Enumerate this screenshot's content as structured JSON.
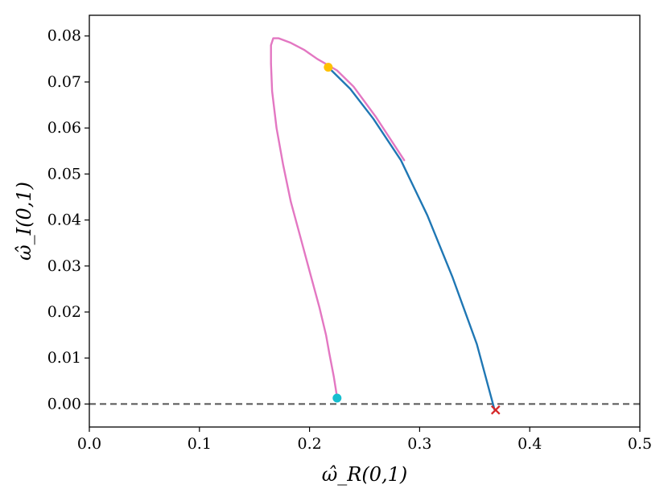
{
  "chart_data": {
    "type": "line",
    "title": "",
    "xlabel": "ω̂_R(0,1)",
    "ylabel": "ω̂_I(0,1)",
    "xlim": [
      0.0,
      0.5
    ],
    "ylim": [
      -0.005,
      0.0845
    ],
    "x_ticks": [
      "0.0",
      "0.1",
      "0.2",
      "0.3",
      "0.4",
      "0.5"
    ],
    "x_tick_values": [
      0.0,
      0.1,
      0.2,
      0.3,
      0.4,
      0.5
    ],
    "y_ticks": [
      "0.00",
      "0.01",
      "0.02",
      "0.03",
      "0.04",
      "0.05",
      "0.06",
      "0.07",
      "0.08"
    ],
    "y_tick_values": [
      0.0,
      0.01,
      0.02,
      0.03,
      0.04,
      0.05,
      0.06,
      0.07,
      0.08
    ],
    "grid": false,
    "reference_line": {
      "y": 0.0,
      "style": "dashed",
      "color": "#555555"
    },
    "series": [
      {
        "color": "#e377c2",
        "points": [
          [
            0.225,
            0.0015
          ],
          [
            0.222,
            0.006
          ],
          [
            0.218,
            0.011
          ],
          [
            0.215,
            0.015
          ],
          [
            0.209,
            0.021
          ],
          [
            0.201,
            0.028
          ],
          [
            0.192,
            0.036
          ],
          [
            0.183,
            0.044
          ],
          [
            0.176,
            0.052
          ],
          [
            0.17,
            0.06
          ],
          [
            0.166,
            0.068
          ],
          [
            0.165,
            0.074
          ],
          [
            0.165,
            0.078
          ],
          [
            0.167,
            0.0795
          ],
          [
            0.172,
            0.0795
          ],
          [
            0.183,
            0.0785
          ],
          [
            0.195,
            0.077
          ],
          [
            0.207,
            0.075
          ],
          [
            0.218,
            0.0735
          ],
          [
            0.225,
            0.0725
          ],
          [
            0.24,
            0.069
          ],
          [
            0.26,
            0.0625
          ],
          [
            0.286,
            0.053
          ]
        ]
      },
      {
        "color": "#1f77b4",
        "points": [
          [
            0.217,
            0.0732
          ],
          [
            0.237,
            0.0685
          ],
          [
            0.258,
            0.062
          ],
          [
            0.283,
            0.053
          ],
          [
            0.307,
            0.041
          ],
          [
            0.33,
            0.0275
          ],
          [
            0.352,
            0.013
          ],
          [
            0.368,
            -0.0012
          ]
        ]
      }
    ],
    "markers": [
      {
        "type": "circle",
        "x": 0.217,
        "y": 0.0732,
        "color": "#ffc000"
      },
      {
        "type": "circle",
        "x": 0.225,
        "y": 0.0013,
        "color": "#17becf"
      },
      {
        "type": "x",
        "x": 0.369,
        "y": -0.0013,
        "color": "#d62728"
      }
    ]
  }
}
